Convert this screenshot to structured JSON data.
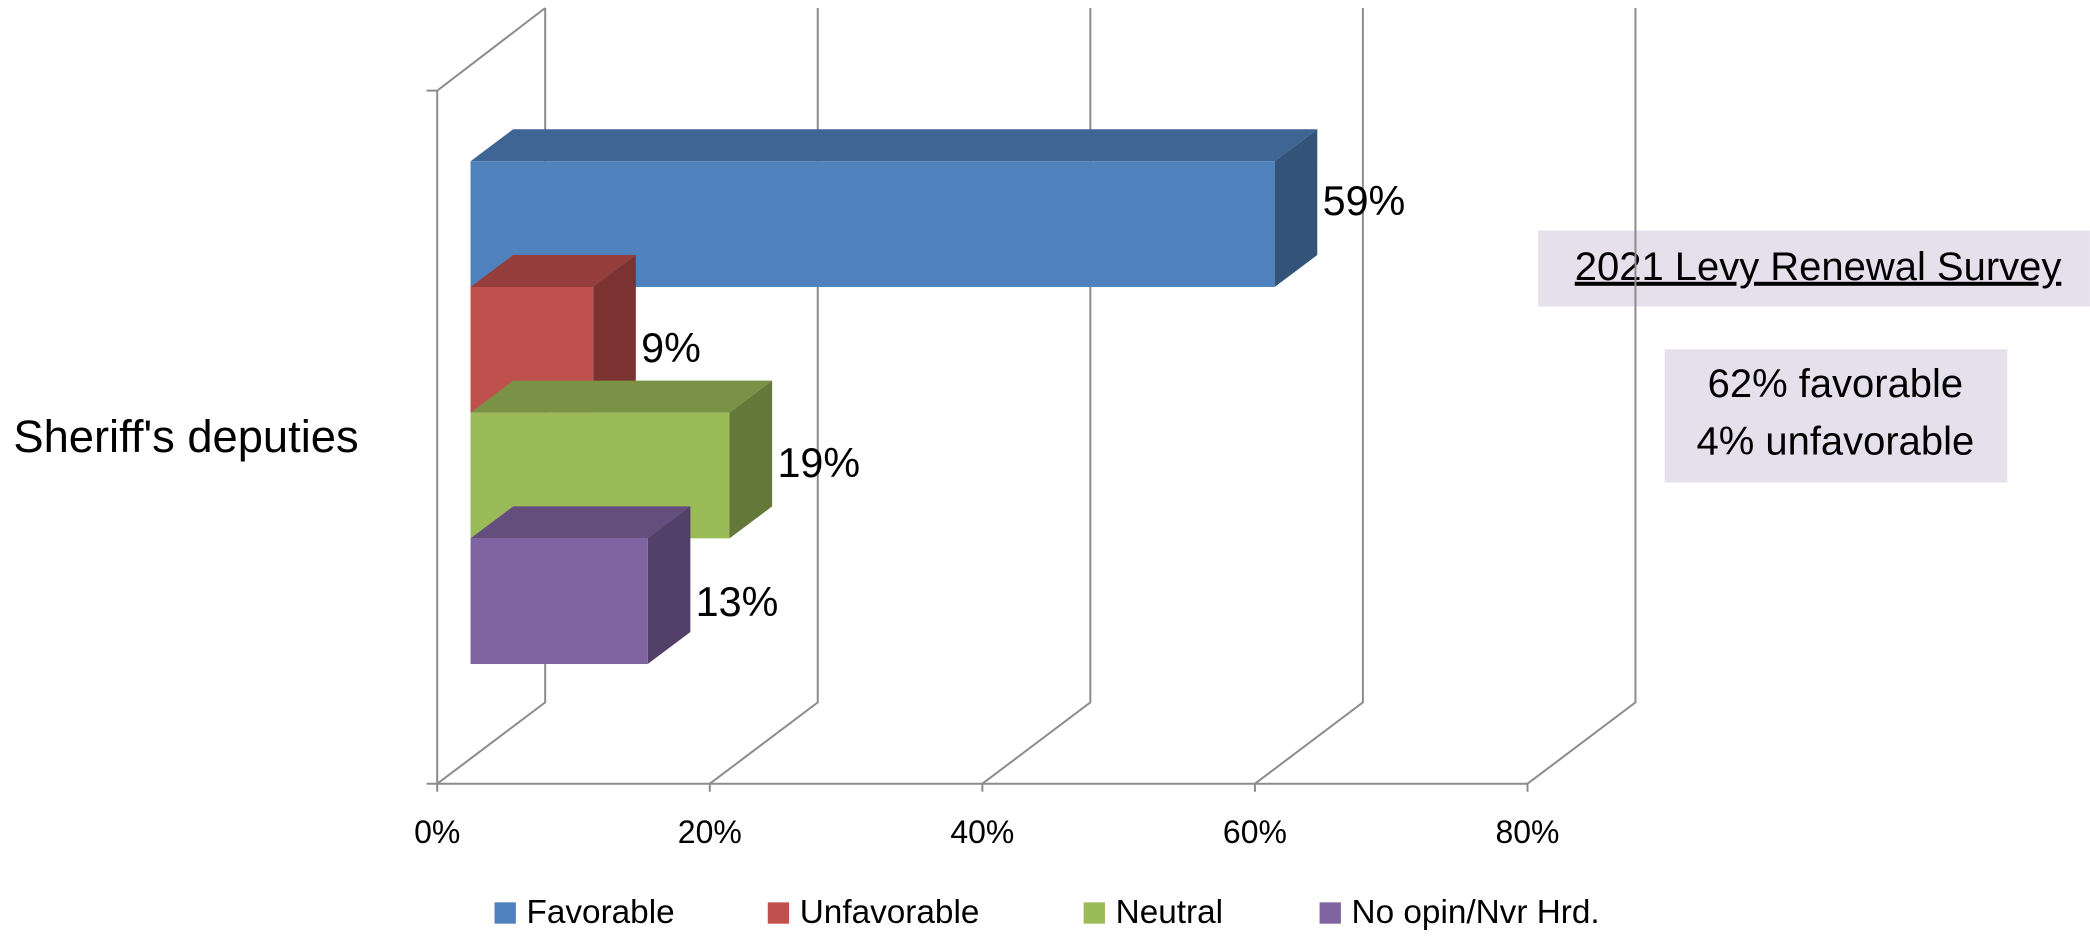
{
  "chart_data": {
    "type": "bar3d-horizontal",
    "categories": [
      "Sheriff's deputies"
    ],
    "series": [
      {
        "name": "Favorable",
        "color": "#4f81bd",
        "values": [
          59
        ],
        "value_labels": [
          "59%"
        ]
      },
      {
        "name": "Unfavorable",
        "color": "#c0504d",
        "values": [
          9
        ],
        "value_labels": [
          "9%"
        ]
      },
      {
        "name": "Neutral",
        "color": "#9bbb59",
        "values": [
          19
        ],
        "value_labels": [
          "19%"
        ]
      },
      {
        "name": "No opin/Nvr Hrd.",
        "color": "#8064a2",
        "values": [
          13
        ],
        "value_labels": [
          "13%"
        ]
      }
    ],
    "xlim": [
      0,
      80
    ],
    "xticks": [
      {
        "value": 0,
        "label": "0%"
      },
      {
        "value": 20,
        "label": "20%"
      },
      {
        "value": 40,
        "label": "40%"
      },
      {
        "value": 60,
        "label": "60%"
      },
      {
        "value": 80,
        "label": "80%"
      }
    ],
    "grid": true,
    "legend": "bottom",
    "annotations": [
      {
        "text": "2021 Levy Renewal Survey"
      },
      {
        "lines": [
          "62% favorable",
          "4% unfavorable"
        ]
      }
    ]
  }
}
